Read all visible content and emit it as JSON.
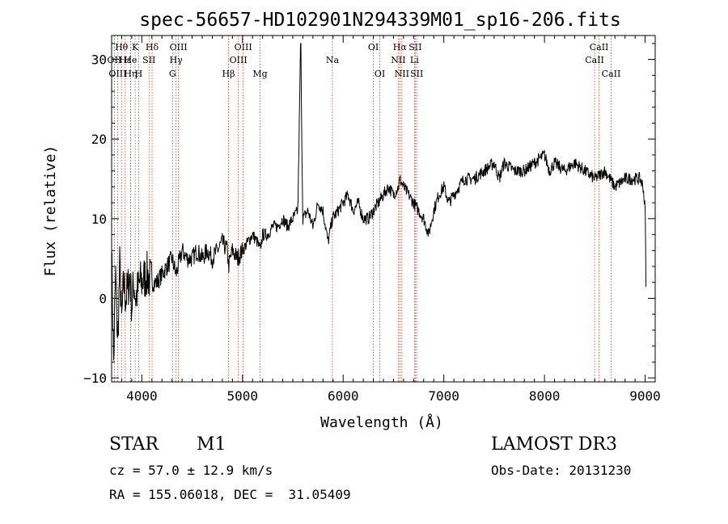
{
  "chart_data": {
    "type": "line",
    "title": "spec-56657-HD102901N294339M01_sp16-206.fits",
    "xlabel": "Wavelength (Å)",
    "ylabel": "Flux (relative)",
    "xlim": [
      3700,
      9100
    ],
    "ylim": [
      -10.5,
      33
    ],
    "xticks": [
      4000,
      5000,
      6000,
      7000,
      8000,
      9000
    ],
    "yticks": [
      -10,
      0,
      10,
      20,
      30
    ],
    "series": [
      {
        "name": "flux",
        "x": [
          3700,
          3720,
          3740,
          3760,
          3780,
          3800,
          3820,
          3840,
          3860,
          3880,
          3900,
          3920,
          3940,
          3960,
          3980,
          4000,
          4050,
          4100,
          4150,
          4200,
          4250,
          4300,
          4340,
          4360,
          4400,
          4450,
          4500,
          4550,
          4600,
          4650,
          4700,
          4750,
          4800,
          4850,
          4861,
          4900,
          4950,
          5000,
          5050,
          5100,
          5150,
          5175,
          5200,
          5250,
          5300,
          5350,
          5400,
          5450,
          5500,
          5550,
          5577,
          5600,
          5650,
          5700,
          5750,
          5800,
          5850,
          5893,
          5950,
          6000,
          6050,
          6100,
          6150,
          6200,
          6250,
          6300,
          6350,
          6400,
          6450,
          6500,
          6550,
          6563,
          6600,
          6650,
          6700,
          6750,
          6800,
          6850,
          6900,
          6950,
          7000,
          7050,
          7100,
          7150,
          7200,
          7300,
          7400,
          7500,
          7550,
          7600,
          7700,
          7800,
          7900,
          8000,
          8050,
          8100,
          8200,
          8300,
          8400,
          8500,
          8600,
          8700,
          8800,
          8900,
          8950,
          8980,
          9000,
          9010
        ],
        "values": [
          6,
          -8,
          3,
          -6,
          4,
          -3,
          2,
          0,
          1,
          3,
          -1,
          2,
          0,
          1,
          2,
          2,
          3,
          2,
          2,
          3,
          4,
          5,
          3,
          4,
          6,
          5,
          5,
          6,
          5,
          6,
          5,
          6,
          7,
          6,
          4,
          6,
          5,
          6,
          7,
          8,
          7,
          6,
          8,
          8,
          9,
          9,
          10,
          9,
          10,
          11,
          32,
          10,
          11,
          9,
          12,
          11,
          7,
          10,
          11,
          12,
          13,
          11,
          12,
          10,
          10,
          11,
          12,
          13,
          14,
          13,
          14,
          15,
          14,
          13,
          12,
          11,
          10,
          8,
          11,
          13,
          14,
          12,
          13,
          14,
          15,
          15,
          16,
          17,
          15,
          17,
          16,
          16,
          17,
          18,
          16,
          17,
          16,
          17,
          16,
          15,
          16,
          14,
          15,
          15,
          15,
          14,
          11,
          0
        ]
      }
    ],
    "lines": [
      {
        "label": "Hθ",
        "x": 3798,
        "row": 0
      },
      {
        "label": "OII",
        "x": 3727,
        "row": 1
      },
      {
        "label": "OIII",
        "x": 3760,
        "row": 2
      },
      {
        "label": "Hε",
        "x": 3835,
        "row": 1
      },
      {
        "label": "Hη",
        "x": 3889,
        "row": 2
      },
      {
        "label": "K",
        "x": 3934,
        "row": 0
      },
      {
        "label": "He",
        "x": 3888,
        "row": 1
      },
      {
        "label": "H",
        "x": 3969,
        "row": 2
      },
      {
        "label": "SII",
        "x": 4072,
        "row": 1
      },
      {
        "label": "Hδ",
        "x": 4102,
        "row": 0
      },
      {
        "label": "OIII",
        "x": 4364,
        "row": 0
      },
      {
        "label": "Hγ",
        "x": 4340,
        "row": 1
      },
      {
        "label": "G",
        "x": 4305,
        "row": 2
      },
      {
        "label": "Hβ",
        "x": 4861,
        "row": 2
      },
      {
        "label": "OIII",
        "x": 5007,
        "row": 0
      },
      {
        "label": "OIII",
        "x": 4959,
        "row": 1
      },
      {
        "label": "Mg",
        "x": 5175,
        "row": 2
      },
      {
        "label": "Na",
        "x": 5893,
        "row": 1
      },
      {
        "label": "OI",
        "x": 6300,
        "row": 0
      },
      {
        "label": "OI",
        "x": 6364,
        "row": 2
      },
      {
        "label": "Hα",
        "x": 6563,
        "row": 0
      },
      {
        "label": "SII",
        "x": 6716,
        "row": 0
      },
      {
        "label": "NII",
        "x": 6548,
        "row": 1
      },
      {
        "label": "Li",
        "x": 6708,
        "row": 1
      },
      {
        "label": "NII",
        "x": 6583,
        "row": 2
      },
      {
        "label": "SII",
        "x": 6731,
        "row": 2
      },
      {
        "label": "CaII",
        "x": 8542,
        "row": 0
      },
      {
        "label": "CaII",
        "x": 8498,
        "row": 1
      },
      {
        "label": "CaII",
        "x": 8662,
        "row": 2
      }
    ]
  },
  "info": {
    "class": "STAR",
    "subclass": "M1",
    "survey": "LAMOST DR3",
    "cz": "cz = 57.0 ± 12.9 km/s",
    "obs_date": "Obs-Date: 20131230",
    "coords": "RA = 155.06018, DEC =  31.05409"
  }
}
